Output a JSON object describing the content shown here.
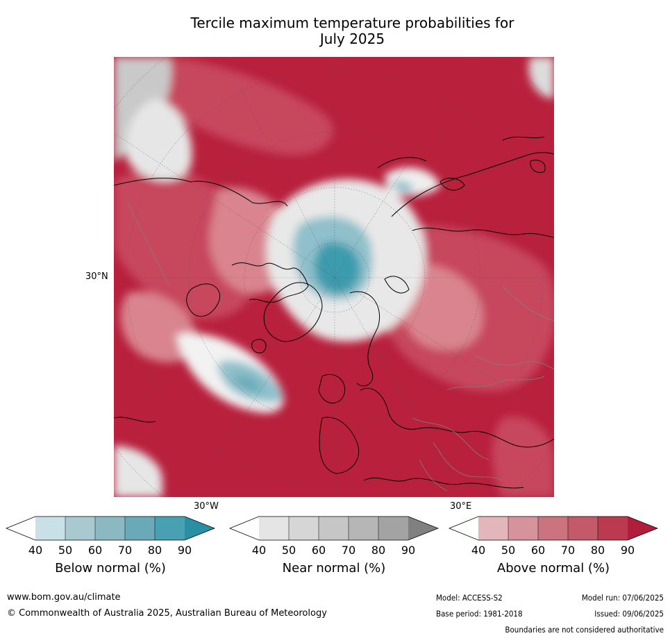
{
  "title_line1": "Tercile maximum temperature probabilities for",
  "title_line2": "July 2025",
  "map": {
    "lat_label": "30°N",
    "lon_label_west": "30°W",
    "lon_label_east": "30°E",
    "colors": {
      "above_deep": "#b8203c",
      "above_mid": "#c7475d",
      "above_light": "#d9848f",
      "near_light": "#e6e6e6",
      "near_dark": "#a9a9a9",
      "below_light": "#c6dfe6",
      "below_deep": "#3c9bae",
      "coast": "#000000",
      "border": "#808080"
    }
  },
  "colorbars": [
    {
      "name": "below",
      "label": "Below normal (%)",
      "ticks": [
        "40",
        "50",
        "60",
        "70",
        "80",
        "90"
      ],
      "colors": [
        "#ffffff",
        "#c9e0e6",
        "#a8c9d0",
        "#8bb8c1",
        "#6aaab8",
        "#48a1b2",
        "#2a8fa3"
      ]
    },
    {
      "name": "near",
      "label": "Near normal (%)",
      "ticks": [
        "40",
        "50",
        "60",
        "70",
        "80",
        "90"
      ],
      "colors": [
        "#ffffff",
        "#e5e5e5",
        "#d6d6d6",
        "#c6c6c6",
        "#b6b6b6",
        "#a3a3a3",
        "#808080"
      ]
    },
    {
      "name": "above",
      "label": "Above normal (%)",
      "ticks": [
        "40",
        "50",
        "60",
        "70",
        "80",
        "90"
      ],
      "colors": [
        "#ffffff",
        "#e3b6bc",
        "#d6939c",
        "#cb747f",
        "#c35a69",
        "#bc3a50",
        "#b01e3c"
      ]
    }
  ],
  "footer": {
    "url": "www.bom.gov.au/climate",
    "copyright": "© Commonwealth of Australia 2025, Australian Bureau of Meteorology",
    "model": "Model: ACCESS-S2",
    "base_period": "Base period: 1981-2018",
    "model_run": "Model run: 07/06/2025",
    "issued": "Issued: 09/06/2025",
    "disclaimer": "Boundaries are not considered authoritative"
  }
}
